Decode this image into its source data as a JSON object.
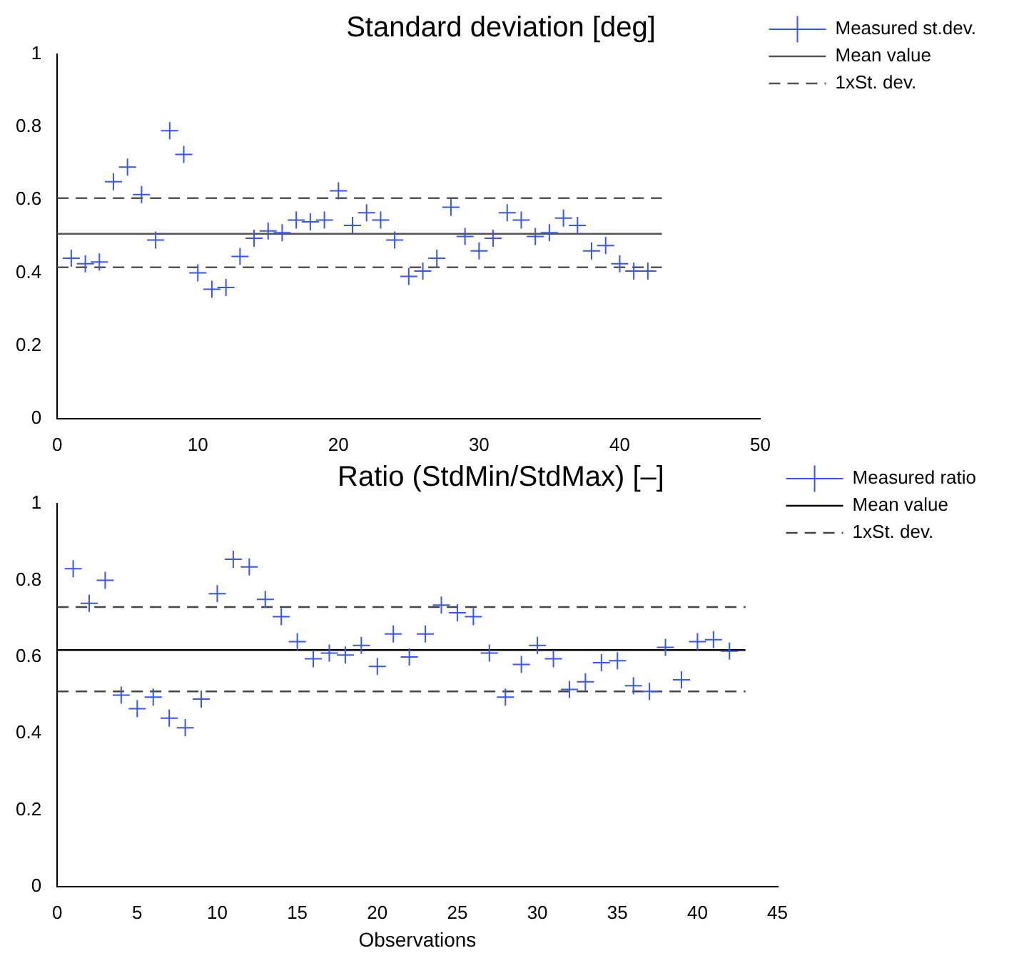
{
  "chart_data": [
    {
      "type": "scatter",
      "title": "Standard deviation [deg]",
      "xlim": [
        0,
        50
      ],
      "xticks": [
        0,
        10,
        20,
        30,
        40,
        50
      ],
      "ylim": [
        0,
        1
      ],
      "yticks": [
        0,
        0.2,
        0.4,
        0.6,
        0.8,
        1
      ],
      "grid": false,
      "legend": "top right",
      "series": [
        {
          "name": "Measured st.dev.",
          "type": "scatter",
          "marker": "cross",
          "color": "#3355ff",
          "x": [
            1,
            2,
            3,
            4,
            5,
            6,
            7,
            8,
            9,
            10,
            11,
            12,
            13,
            14,
            15,
            16,
            17,
            18,
            19,
            20,
            21,
            22,
            23,
            24,
            25,
            26,
            27,
            28,
            29,
            30,
            31,
            32,
            33,
            34,
            35,
            36,
            37,
            38,
            39,
            40,
            41,
            42
          ],
          "values": [
            0.44,
            0.425,
            0.43,
            0.65,
            0.69,
            0.615,
            0.49,
            0.79,
            0.725,
            0.4,
            0.355,
            0.36,
            0.445,
            0.495,
            0.515,
            0.51,
            0.545,
            0.54,
            0.545,
            0.625,
            0.53,
            0.565,
            0.545,
            0.49,
            0.39,
            0.405,
            0.44,
            0.58,
            0.5,
            0.46,
            0.495,
            0.565,
            0.545,
            0.5,
            0.51,
            0.55,
            0.53,
            0.46,
            0.475,
            0.425,
            0.405,
            0.405
          ]
        },
        {
          "name": "Mean value",
          "type": "line",
          "marker": "none",
          "line_style": "solid",
          "color": "#555555",
          "x": [
            0,
            43
          ],
          "values": [
            0.507,
            0.507
          ]
        },
        {
          "name": "1xSt. dev.",
          "type": "line",
          "marker": "none",
          "line_style": "dashed",
          "color": "#555555",
          "x": [
            0,
            43
          ],
          "values": [
            0.605,
            0.605
          ]
        },
        {
          "type": "line",
          "marker": "none",
          "line_style": "dashed",
          "color": "#555555",
          "x": [
            0,
            43
          ],
          "values": [
            0.415,
            0.415
          ]
        }
      ]
    },
    {
      "type": "scatter",
      "title": "Ratio (StdMin/StdMax) [–]",
      "xlabel": "Observations",
      "xlim": [
        0,
        45
      ],
      "xticks": [
        0,
        5,
        10,
        15,
        20,
        25,
        30,
        35,
        40,
        45
      ],
      "ylim": [
        0,
        1
      ],
      "yticks": [
        0,
        0.2,
        0.4,
        0.6,
        0.8,
        1
      ],
      "grid": false,
      "legend": "top right",
      "series": [
        {
          "name": "Measured ratio",
          "type": "scatter",
          "marker": "cross",
          "color": "#3355ff",
          "x": [
            1,
            2,
            3,
            4,
            5,
            6,
            7,
            8,
            9,
            10,
            11,
            12,
            13,
            14,
            15,
            16,
            17,
            18,
            19,
            20,
            21,
            22,
            23,
            24,
            25,
            26,
            27,
            28,
            29,
            30,
            31,
            32,
            33,
            34,
            35,
            36,
            37,
            38,
            39,
            40,
            41,
            42
          ],
          "values": [
            0.83,
            0.74,
            0.8,
            0.5,
            0.465,
            0.495,
            0.44,
            0.415,
            0.49,
            0.765,
            0.855,
            0.835,
            0.75,
            0.705,
            0.64,
            0.595,
            0.61,
            0.605,
            0.63,
            0.575,
            0.66,
            0.6,
            0.66,
            0.735,
            0.715,
            0.705,
            0.61,
            0.495,
            0.58,
            0.63,
            0.595,
            0.515,
            0.535,
            0.585,
            0.59,
            0.525,
            0.51,
            0.625,
            0.54,
            0.64,
            0.645,
            0.615
          ]
        },
        {
          "name": "Mean value",
          "type": "line",
          "marker": "none",
          "line_style": "solid",
          "color": "#000000",
          "x": [
            0,
            43
          ],
          "values": [
            0.618,
            0.618
          ]
        },
        {
          "name": "1xSt. dev.",
          "type": "line",
          "marker": "none",
          "line_style": "dashed",
          "color": "#444444",
          "x": [
            0,
            43
          ],
          "values": [
            0.73,
            0.73
          ]
        },
        {
          "type": "line",
          "marker": "none",
          "line_style": "dashed",
          "color": "#444444",
          "x": [
            0,
            43
          ],
          "values": [
            0.51,
            0.51
          ]
        }
      ]
    }
  ]
}
